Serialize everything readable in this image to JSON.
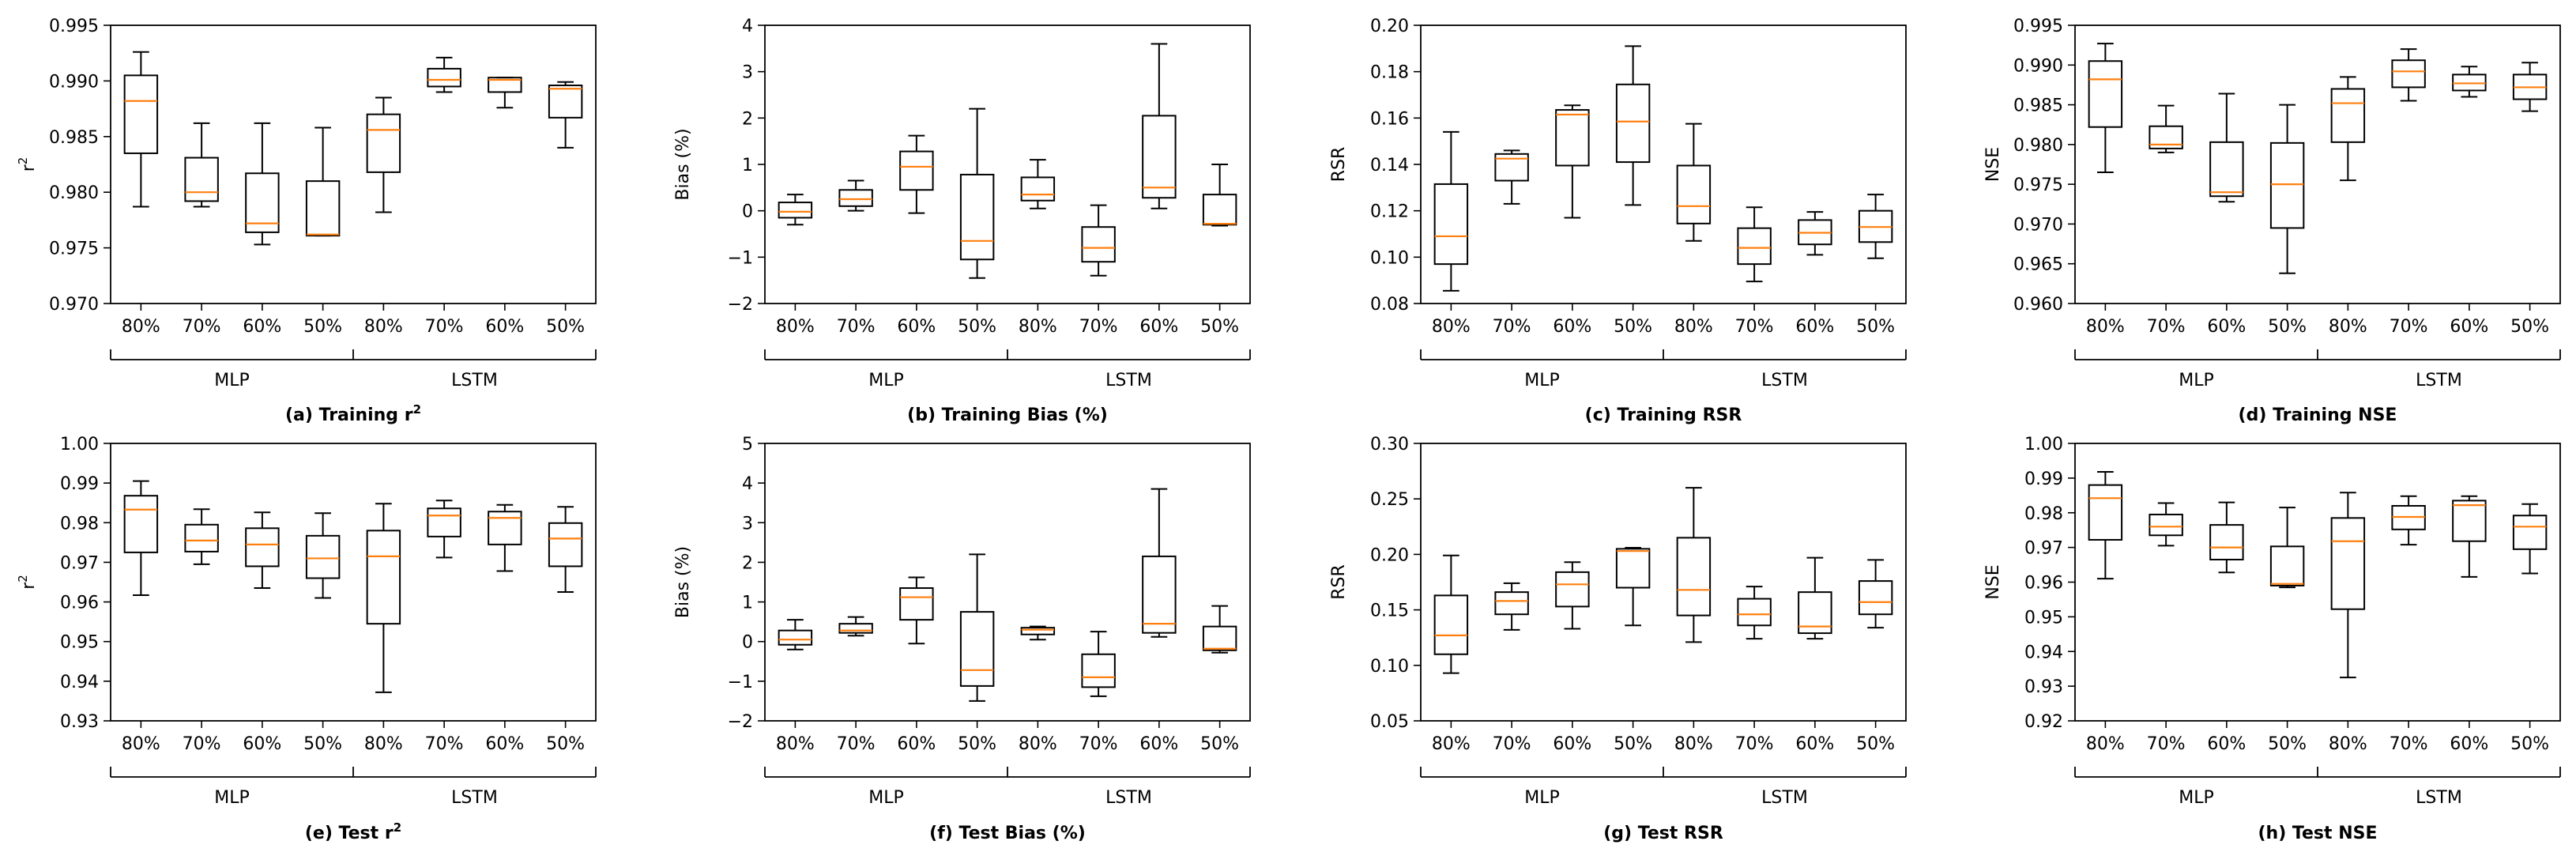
{
  "chart_data": [
    {
      "type": "box",
      "caption": "(a) Training r",
      "caption_sup": "2",
      "ylabel": "r",
      "ylabel_sup": "2",
      "ylim": [
        0.97,
        0.995
      ],
      "yticks": [
        "0.970",
        "0.975",
        "0.980",
        "0.985",
        "0.990",
        "0.995"
      ],
      "categories": [
        "80%",
        "70%",
        "60%",
        "50%",
        "80%",
        "70%",
        "60%",
        "50%"
      ],
      "groups": [
        "MLP",
        "LSTM"
      ],
      "boxes": [
        {
          "min": 0.9787,
          "q1": 0.9835,
          "median": 0.9882,
          "q3": 0.9905,
          "max": 0.9926
        },
        {
          "min": 0.9787,
          "q1": 0.9792,
          "median": 0.98,
          "q3": 0.9831,
          "max": 0.9862
        },
        {
          "min": 0.9753,
          "q1": 0.9764,
          "median": 0.9772,
          "q3": 0.9817,
          "max": 0.9862
        },
        {
          "min": 0.9761,
          "q1": 0.9761,
          "median": 0.9762,
          "q3": 0.981,
          "max": 0.9858
        },
        {
          "min": 0.9782,
          "q1": 0.9818,
          "median": 0.9856,
          "q3": 0.987,
          "max": 0.9885
        },
        {
          "min": 0.989,
          "q1": 0.9895,
          "median": 0.9901,
          "q3": 0.9911,
          "max": 0.9921
        },
        {
          "min": 0.9876,
          "q1": 0.989,
          "median": 0.9901,
          "q3": 0.9903,
          "max": 0.9903
        },
        {
          "min": 0.984,
          "q1": 0.9867,
          "median": 0.9893,
          "q3": 0.9896,
          "max": 0.9899
        }
      ]
    },
    {
      "type": "box",
      "caption": "(b) Training Bias (%)",
      "caption_sup": "",
      "ylabel": "Bias (%)",
      "ylabel_sup": "",
      "ylim": [
        -2,
        4
      ],
      "yticks": [
        "−2",
        "−1",
        "0",
        "1",
        "2",
        "3",
        "4"
      ],
      "categories": [
        "80%",
        "70%",
        "60%",
        "50%",
        "80%",
        "70%",
        "60%",
        "50%"
      ],
      "groups": [
        "MLP",
        "LSTM"
      ],
      "boxes": [
        {
          "min": -0.3,
          "q1": -0.15,
          "median": -0.02,
          "q3": 0.18,
          "max": 0.35
        },
        {
          "min": 0.0,
          "q1": 0.1,
          "median": 0.25,
          "q3": 0.45,
          "max": 0.65
        },
        {
          "min": -0.05,
          "q1": 0.45,
          "median": 0.95,
          "q3": 1.28,
          "max": 1.62
        },
        {
          "min": -1.45,
          "q1": -1.05,
          "median": -0.65,
          "q3": 0.78,
          "max": 2.2
        },
        {
          "min": 0.05,
          "q1": 0.22,
          "median": 0.35,
          "q3": 0.72,
          "max": 1.1
        },
        {
          "min": -1.4,
          "q1": -1.1,
          "median": -0.8,
          "q3": -0.35,
          "max": 0.12
        },
        {
          "min": 0.05,
          "q1": 0.28,
          "median": 0.5,
          "q3": 2.05,
          "max": 3.6
        },
        {
          "min": -0.32,
          "q1": -0.3,
          "median": -0.28,
          "q3": 0.35,
          "max": 1.0
        }
      ]
    },
    {
      "type": "box",
      "caption": "(c) Training RSR",
      "caption_sup": "",
      "ylabel": "RSR",
      "ylabel_sup": "",
      "ylim": [
        0.08,
        0.2
      ],
      "yticks": [
        "0.08",
        "0.10",
        "0.12",
        "0.14",
        "0.16",
        "0.18",
        "0.20"
      ],
      "categories": [
        "80%",
        "70%",
        "60%",
        "50%",
        "80%",
        "70%",
        "60%",
        "50%"
      ],
      "groups": [
        "MLP",
        "LSTM"
      ],
      "boxes": [
        {
          "min": 0.0855,
          "q1": 0.097,
          "median": 0.109,
          "q3": 0.1315,
          "max": 0.154
        },
        {
          "min": 0.123,
          "q1": 0.133,
          "median": 0.1425,
          "q3": 0.1445,
          "max": 0.146
        },
        {
          "min": 0.117,
          "q1": 0.1395,
          "median": 0.1615,
          "q3": 0.1635,
          "max": 0.1655
        },
        {
          "min": 0.1225,
          "q1": 0.141,
          "median": 0.1585,
          "q3": 0.1745,
          "max": 0.191
        },
        {
          "min": 0.107,
          "q1": 0.1145,
          "median": 0.122,
          "q3": 0.1395,
          "max": 0.1575
        },
        {
          "min": 0.0895,
          "q1": 0.097,
          "median": 0.104,
          "q3": 0.1125,
          "max": 0.1215
        },
        {
          "min": 0.101,
          "q1": 0.1055,
          "median": 0.1105,
          "q3": 0.116,
          "max": 0.1195
        },
        {
          "min": 0.0995,
          "q1": 0.1065,
          "median": 0.113,
          "q3": 0.12,
          "max": 0.127
        }
      ]
    },
    {
      "type": "box",
      "caption": "(d) Training NSE",
      "caption_sup": "",
      "ylabel": "NSE",
      "ylabel_sup": "",
      "ylim": [
        0.96,
        0.995
      ],
      "yticks": [
        "0.960",
        "0.965",
        "0.970",
        "0.975",
        "0.980",
        "0.985",
        "0.990",
        "0.995"
      ],
      "categories": [
        "80%",
        "70%",
        "60%",
        "50%",
        "80%",
        "70%",
        "60%",
        "50%"
      ],
      "groups": [
        "MLP",
        "LSTM"
      ],
      "boxes": [
        {
          "min": 0.9765,
          "q1": 0.9822,
          "median": 0.9882,
          "q3": 0.9905,
          "max": 0.9927
        },
        {
          "min": 0.979,
          "q1": 0.9795,
          "median": 0.98,
          "q3": 0.9823,
          "max": 0.9849
        },
        {
          "min": 0.9728,
          "q1": 0.9735,
          "median": 0.974,
          "q3": 0.9803,
          "max": 0.9864
        },
        {
          "min": 0.9638,
          "q1": 0.9695,
          "median": 0.975,
          "q3": 0.9802,
          "max": 0.985
        },
        {
          "min": 0.9755,
          "q1": 0.9803,
          "median": 0.9852,
          "q3": 0.987,
          "max": 0.9885
        },
        {
          "min": 0.9855,
          "q1": 0.9872,
          "median": 0.9892,
          "q3": 0.9906,
          "max": 0.992
        },
        {
          "min": 0.986,
          "q1": 0.9868,
          "median": 0.9877,
          "q3": 0.9888,
          "max": 0.9898
        },
        {
          "min": 0.9842,
          "q1": 0.9857,
          "median": 0.9872,
          "q3": 0.9888,
          "max": 0.9903
        }
      ]
    },
    {
      "type": "box",
      "caption": "(e) Test r",
      "caption_sup": "2",
      "ylabel": "r",
      "ylabel_sup": "2",
      "ylim": [
        0.93,
        1.0
      ],
      "yticks": [
        "0.93",
        "0.94",
        "0.95",
        "0.96",
        "0.97",
        "0.98",
        "0.99",
        "1.00"
      ],
      "categories": [
        "80%",
        "70%",
        "60%",
        "50%",
        "80%",
        "70%",
        "60%",
        "50%"
      ],
      "groups": [
        "MLP",
        "LSTM"
      ],
      "boxes": [
        {
          "min": 0.9617,
          "q1": 0.9725,
          "median": 0.9833,
          "q3": 0.9868,
          "max": 0.9905
        },
        {
          "min": 0.9695,
          "q1": 0.9727,
          "median": 0.9755,
          "q3": 0.9795,
          "max": 0.9834
        },
        {
          "min": 0.9635,
          "q1": 0.969,
          "median": 0.9745,
          "q3": 0.9786,
          "max": 0.9826
        },
        {
          "min": 0.961,
          "q1": 0.966,
          "median": 0.971,
          "q3": 0.9767,
          "max": 0.9824
        },
        {
          "min": 0.9372,
          "q1": 0.9545,
          "median": 0.9715,
          "q3": 0.978,
          "max": 0.9848
        },
        {
          "min": 0.9712,
          "q1": 0.9765,
          "median": 0.9818,
          "q3": 0.9836,
          "max": 0.9856
        },
        {
          "min": 0.9678,
          "q1": 0.9745,
          "median": 0.9812,
          "q3": 0.9828,
          "max": 0.9845
        },
        {
          "min": 0.9625,
          "q1": 0.969,
          "median": 0.976,
          "q3": 0.9799,
          "max": 0.984
        }
      ]
    },
    {
      "type": "box",
      "caption": "(f) Test Bias (%)",
      "caption_sup": "",
      "ylabel": "Bias (%)",
      "ylabel_sup": "",
      "ylim": [
        -2,
        5
      ],
      "yticks": [
        "−2",
        "−1",
        "0",
        "1",
        "2",
        "3",
        "4",
        "5"
      ],
      "categories": [
        "80%",
        "70%",
        "60%",
        "50%",
        "80%",
        "70%",
        "60%",
        "50%"
      ],
      "groups": [
        "MLP",
        "LSTM"
      ],
      "boxes": [
        {
          "min": -0.2,
          "q1": -0.08,
          "median": 0.05,
          "q3": 0.28,
          "max": 0.55
        },
        {
          "min": 0.15,
          "q1": 0.22,
          "median": 0.28,
          "q3": 0.45,
          "max": 0.62
        },
        {
          "min": -0.05,
          "q1": 0.55,
          "median": 1.12,
          "q3": 1.35,
          "max": 1.62
        },
        {
          "min": -1.5,
          "q1": -1.12,
          "median": -0.72,
          "q3": 0.75,
          "max": 2.2
        },
        {
          "min": 0.05,
          "q1": 0.18,
          "median": 0.3,
          "q3": 0.35,
          "max": 0.38
        },
        {
          "min": -1.38,
          "q1": -1.15,
          "median": -0.9,
          "q3": -0.32,
          "max": 0.25
        },
        {
          "min": 0.12,
          "q1": 0.22,
          "median": 0.45,
          "q3": 2.15,
          "max": 3.85
        },
        {
          "min": -0.28,
          "q1": -0.22,
          "median": -0.18,
          "q3": 0.38,
          "max": 0.9
        }
      ]
    },
    {
      "type": "box",
      "caption": "(g) Test RSR",
      "caption_sup": "",
      "ylabel": "RSR",
      "ylabel_sup": "",
      "ylim": [
        0.05,
        0.3
      ],
      "yticks": [
        "0.05",
        "0.10",
        "0.15",
        "0.20",
        "0.25",
        "0.30"
      ],
      "categories": [
        "80%",
        "70%",
        "60%",
        "50%",
        "80%",
        "70%",
        "60%",
        "50%"
      ],
      "groups": [
        "MLP",
        "LSTM"
      ],
      "boxes": [
        {
          "min": 0.093,
          "q1": 0.11,
          "median": 0.127,
          "q3": 0.163,
          "max": 0.199
        },
        {
          "min": 0.132,
          "q1": 0.146,
          "median": 0.158,
          "q3": 0.166,
          "max": 0.174
        },
        {
          "min": 0.133,
          "q1": 0.153,
          "median": 0.173,
          "q3": 0.184,
          "max": 0.193
        },
        {
          "min": 0.136,
          "q1": 0.17,
          "median": 0.203,
          "q3": 0.205,
          "max": 0.206
        },
        {
          "min": 0.121,
          "q1": 0.145,
          "median": 0.168,
          "q3": 0.215,
          "max": 0.26
        },
        {
          "min": 0.124,
          "q1": 0.136,
          "median": 0.146,
          "q3": 0.16,
          "max": 0.171
        },
        {
          "min": 0.124,
          "q1": 0.129,
          "median": 0.135,
          "q3": 0.166,
          "max": 0.197
        },
        {
          "min": 0.134,
          "q1": 0.146,
          "median": 0.157,
          "q3": 0.176,
          "max": 0.195
        }
      ]
    },
    {
      "type": "box",
      "caption": "(h) Test NSE",
      "caption_sup": "",
      "ylabel": "NSE",
      "ylabel_sup": "",
      "ylim": [
        0.92,
        1.0
      ],
      "yticks": [
        "0.92",
        "0.93",
        "0.94",
        "0.95",
        "0.96",
        "0.97",
        "0.98",
        "0.99",
        "1.00"
      ],
      "categories": [
        "80%",
        "70%",
        "60%",
        "50%",
        "80%",
        "70%",
        "60%",
        "50%"
      ],
      "groups": [
        "MLP",
        "LSTM"
      ],
      "boxes": [
        {
          "min": 0.961,
          "q1": 0.9722,
          "median": 0.9842,
          "q3": 0.988,
          "max": 0.9918
        },
        {
          "min": 0.9705,
          "q1": 0.9735,
          "median": 0.976,
          "q3": 0.9795,
          "max": 0.9828
        },
        {
          "min": 0.9628,
          "q1": 0.9665,
          "median": 0.97,
          "q3": 0.9765,
          "max": 0.983
        },
        {
          "min": 0.9585,
          "q1": 0.959,
          "median": 0.9595,
          "q3": 0.9703,
          "max": 0.9815
        },
        {
          "min": 0.9325,
          "q1": 0.9522,
          "median": 0.9718,
          "q3": 0.9785,
          "max": 0.9858
        },
        {
          "min": 0.9708,
          "q1": 0.9752,
          "median": 0.9788,
          "q3": 0.982,
          "max": 0.9848
        },
        {
          "min": 0.9615,
          "q1": 0.9718,
          "median": 0.9822,
          "q3": 0.9835,
          "max": 0.9848
        },
        {
          "min": 0.9625,
          "q1": 0.9695,
          "median": 0.976,
          "q3": 0.9792,
          "max": 0.9825
        }
      ]
    }
  ],
  "colors": {
    "box_edge": "#000000",
    "median": "#ff7f0e",
    "axis": "#000000"
  }
}
